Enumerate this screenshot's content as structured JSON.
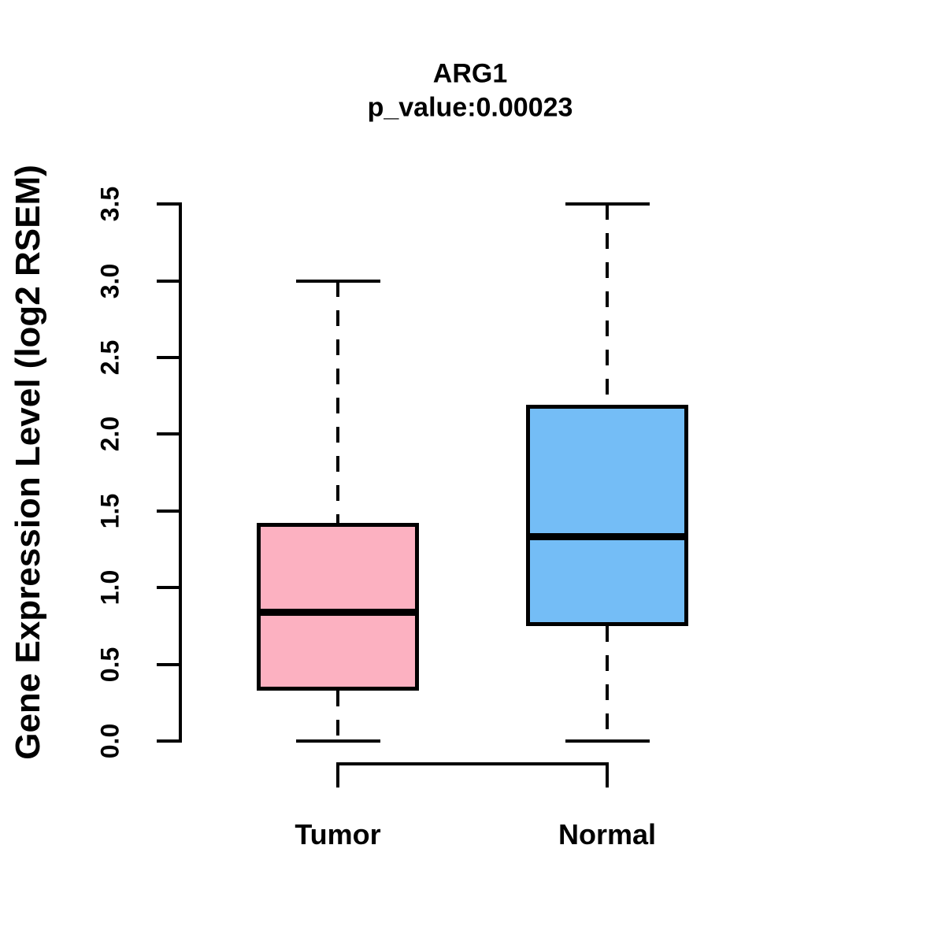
{
  "chart_data": {
    "type": "boxplot",
    "title": "ARG1",
    "subtitle": "p_value:0.00023",
    "ylabel": "Gene Expression Level (log2 RSEM)",
    "xlabel": "",
    "ylim": [
      0,
      3.5
    ],
    "grid": false,
    "legend_position": "none",
    "yticks": [
      {
        "value": 0.0,
        "label": "0.0"
      },
      {
        "value": 0.5,
        "label": "0.5"
      },
      {
        "value": 1.0,
        "label": "1.0"
      },
      {
        "value": 1.5,
        "label": "1.5"
      },
      {
        "value": 2.0,
        "label": "2.0"
      },
      {
        "value": 2.5,
        "label": "2.5"
      },
      {
        "value": 3.0,
        "label": "3.0"
      },
      {
        "value": 3.5,
        "label": "3.5"
      }
    ],
    "groups": [
      {
        "label": "Tumor",
        "fill_color": "#FCB1C1",
        "whisker_low": 0.0,
        "q1": 0.33,
        "median": 0.84,
        "q3": 1.42,
        "whisker_high": 3.0
      },
      {
        "label": "Normal",
        "fill_color": "#74BDF6",
        "whisker_low": 0.0,
        "q1": 0.75,
        "median": 1.33,
        "q3": 2.19,
        "whisker_high": 3.5
      }
    ],
    "comparison_bracket": {
      "between": [
        "Tumor",
        "Normal"
      ]
    },
    "colors": {
      "line": "#000000",
      "text": "#000000",
      "background": "#FFFFFF"
    }
  }
}
